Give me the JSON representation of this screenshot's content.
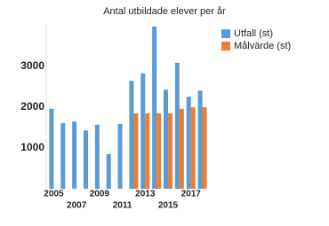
{
  "chart_data": {
    "type": "bar",
    "title": "Antal utbildade elever per år",
    "categories": [
      "2005",
      null,
      "2007",
      null,
      "2009",
      null,
      "2011",
      null,
      "2013",
      null,
      "2015",
      null,
      "2017",
      null
    ],
    "series": [
      {
        "name": "Utfall (st)",
        "color": "#5b9bd5",
        "values": [
          1960,
          1610,
          1650,
          1430,
          1570,
          850,
          1590,
          2650,
          2830,
          3980,
          2430,
          3090,
          2260,
          2410
        ]
      },
      {
        "name": "Målvärde (st)",
        "color": "#ed7d31",
        "values": [
          null,
          null,
          null,
          null,
          null,
          null,
          null,
          1850,
          1850,
          1850,
          1850,
          1960,
          2000,
          2000
        ]
      }
    ],
    "ylim": [
      0,
      4000
    ],
    "yticks": [
      1000,
      2000,
      3000
    ],
    "grid": false,
    "legend": "right"
  }
}
